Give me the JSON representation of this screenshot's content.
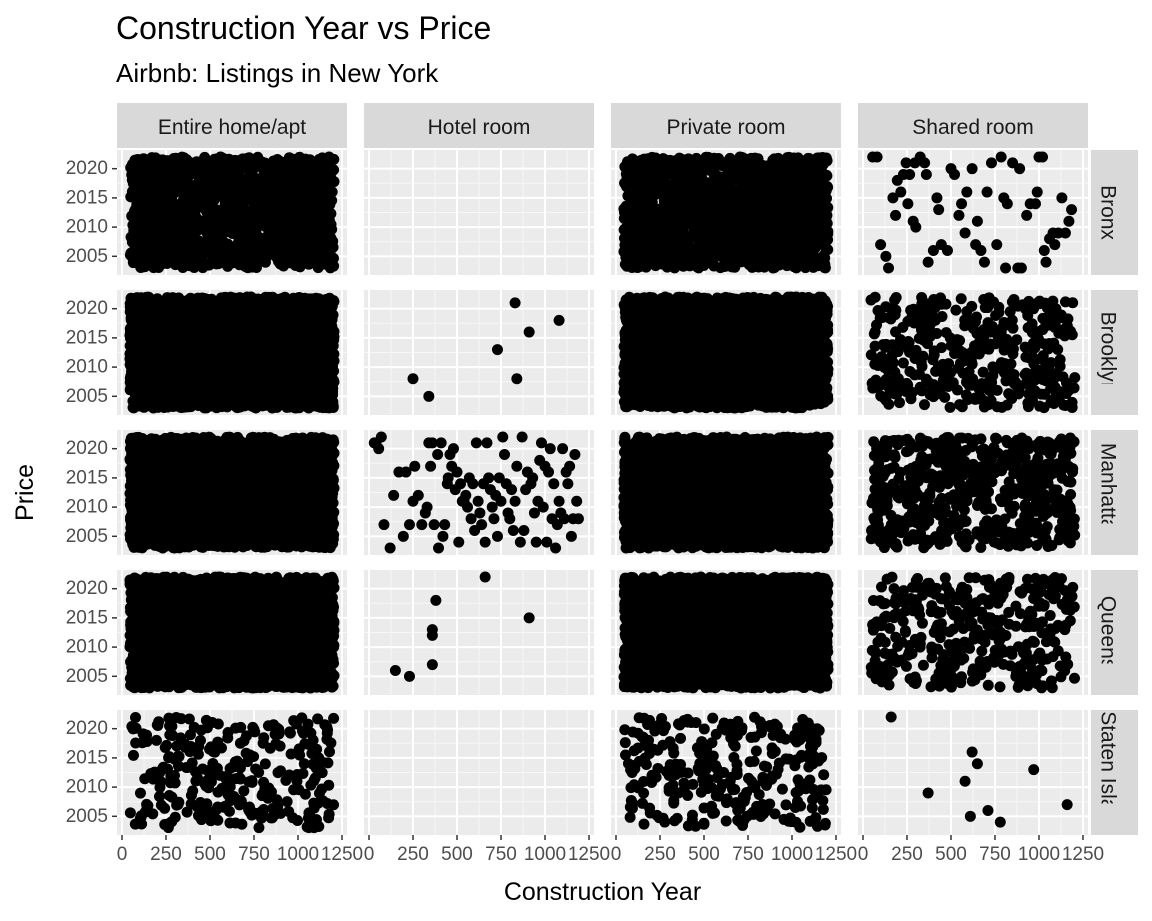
{
  "chart_data": {
    "type": "scatter",
    "title": "Construction Year vs Price",
    "subtitle": "Airbnb: Listings in New York",
    "xlabel": "Construction Year",
    "ylabel": "Price",
    "xlim": [
      0,
      1250
    ],
    "ylim": [
      2003,
      2022
    ],
    "x_ticks": [
      0,
      250,
      500,
      750,
      1000,
      1250
    ],
    "y_ticks": [
      2005,
      2010,
      2015,
      2020
    ],
    "grid": true,
    "legend": "none",
    "point_color": "#000000",
    "panel_background": "#EBEBEB",
    "strip_background": "#D9D9D9",
    "facet_columns": [
      "Entire home/apt",
      "Hotel room",
      "Private room",
      "Shared room"
    ],
    "facet_rows": [
      "Bronx",
      "Brooklyn",
      "Manhattan",
      "Queens",
      "Staten Island"
    ],
    "panels": [
      {
        "row": "Bronx",
        "col": "Entire home/apt",
        "density": "dense",
        "n_points": 1500
      },
      {
        "row": "Bronx",
        "col": "Hotel room",
        "density": "empty",
        "points": []
      },
      {
        "row": "Bronx",
        "col": "Private room",
        "density": "dense",
        "n_points": 1500
      },
      {
        "row": "Bronx",
        "col": "Shared room",
        "density": "sparse",
        "points": [
          [
            55,
            2022
          ],
          [
            80,
            2022
          ],
          [
            100,
            2007
          ],
          [
            130,
            2005
          ],
          [
            145,
            2003
          ],
          [
            170,
            2015
          ],
          [
            185,
            2012
          ],
          [
            195,
            2018
          ],
          [
            215,
            2016
          ],
          [
            230,
            2019
          ],
          [
            245,
            2021
          ],
          [
            255,
            2014
          ],
          [
            265,
            2019
          ],
          [
            285,
            2011
          ],
          [
            295,
            2021
          ],
          [
            300,
            2010
          ],
          [
            325,
            2022
          ],
          [
            350,
            2021
          ],
          [
            360,
            2019
          ],
          [
            370,
            2004
          ],
          [
            400,
            2006
          ],
          [
            420,
            2015
          ],
          [
            430,
            2013
          ],
          [
            445,
            2007
          ],
          [
            480,
            2006
          ],
          [
            500,
            2020
          ],
          [
            520,
            2019
          ],
          [
            545,
            2012
          ],
          [
            560,
            2014
          ],
          [
            580,
            2009
          ],
          [
            590,
            2016
          ],
          [
            620,
            2020
          ],
          [
            640,
            2007
          ],
          [
            650,
            2011
          ],
          [
            670,
            2006
          ],
          [
            690,
            2004
          ],
          [
            705,
            2016
          ],
          [
            730,
            2021
          ],
          [
            760,
            2007
          ],
          [
            785,
            2022
          ],
          [
            800,
            2015
          ],
          [
            810,
            2003
          ],
          [
            820,
            2014
          ],
          [
            850,
            2021
          ],
          [
            880,
            2003
          ],
          [
            890,
            2020
          ],
          [
            900,
            2003
          ],
          [
            930,
            2012
          ],
          [
            950,
            2014
          ],
          [
            980,
            2014
          ],
          [
            990,
            2016
          ],
          [
            1000,
            2022
          ],
          [
            1020,
            2022
          ],
          [
            1030,
            2006
          ],
          [
            1040,
            2004
          ],
          [
            1060,
            2008
          ],
          [
            1080,
            2009
          ],
          [
            1090,
            2007
          ],
          [
            1110,
            2009
          ],
          [
            1130,
            2015
          ],
          [
            1150,
            2009
          ],
          [
            1170,
            2011
          ],
          [
            1185,
            2013
          ]
        ]
      },
      {
        "row": "Brooklyn",
        "col": "Entire home/apt",
        "density": "dense",
        "n_points": 3000
      },
      {
        "row": "Brooklyn",
        "col": "Hotel room",
        "density": "sparse",
        "points": [
          [
            250,
            2008
          ],
          [
            340,
            2005
          ],
          [
            730,
            2013
          ],
          [
            830,
            2021
          ],
          [
            840,
            2008
          ],
          [
            910,
            2016
          ],
          [
            1080,
            2018
          ]
        ]
      },
      {
        "row": "Brooklyn",
        "col": "Private room",
        "density": "dense",
        "n_points": 3000
      },
      {
        "row": "Brooklyn",
        "col": "Shared room",
        "density": "medium",
        "n_points": 420
      },
      {
        "row": "Manhattan",
        "col": "Entire home/apt",
        "density": "dense",
        "n_points": 3000
      },
      {
        "row": "Manhattan",
        "col": "Hotel room",
        "density": "sparse",
        "points": [
          [
            30,
            2021
          ],
          [
            40,
            2021
          ],
          [
            55,
            2020
          ],
          [
            70,
            2022
          ],
          [
            85,
            2007
          ],
          [
            120,
            2003
          ],
          [
            140,
            2012
          ],
          [
            170,
            2016
          ],
          [
            195,
            2005
          ],
          [
            210,
            2016
          ],
          [
            230,
            2007
          ],
          [
            250,
            2011
          ],
          [
            260,
            2017
          ],
          [
            280,
            2012
          ],
          [
            300,
            2007
          ],
          [
            320,
            2009
          ],
          [
            330,
            2010
          ],
          [
            340,
            2021
          ],
          [
            350,
            2017
          ],
          [
            360,
            2021
          ],
          [
            370,
            2007
          ],
          [
            390,
            2019
          ],
          [
            395,
            2003
          ],
          [
            410,
            2021
          ],
          [
            420,
            2005
          ],
          [
            430,
            2007
          ],
          [
            445,
            2014
          ],
          [
            450,
            2015
          ],
          [
            460,
            2019
          ],
          [
            470,
            2017
          ],
          [
            480,
            2020
          ],
          [
            490,
            2013
          ],
          [
            500,
            2016
          ],
          [
            510,
            2004
          ],
          [
            520,
            2014
          ],
          [
            530,
            2011
          ],
          [
            540,
            2011
          ],
          [
            550,
            2012
          ],
          [
            560,
            2010
          ],
          [
            570,
            2015
          ],
          [
            580,
            2008
          ],
          [
            590,
            2014
          ],
          [
            600,
            2006
          ],
          [
            610,
            2021
          ],
          [
            620,
            2011
          ],
          [
            630,
            2009
          ],
          [
            640,
            2007
          ],
          [
            650,
            2014
          ],
          [
            660,
            2004
          ],
          [
            670,
            2021
          ],
          [
            680,
            2015
          ],
          [
            690,
            2013
          ],
          [
            700,
            2010
          ],
          [
            710,
            2008
          ],
          [
            720,
            2012
          ],
          [
            730,
            2005
          ],
          [
            740,
            2015
          ],
          [
            750,
            2011
          ],
          [
            760,
            2022
          ],
          [
            770,
            2019
          ],
          [
            780,
            2014
          ],
          [
            790,
            2009
          ],
          [
            800,
            2008
          ],
          [
            810,
            2013
          ],
          [
            820,
            2006
          ],
          [
            830,
            2011
          ],
          [
            840,
            2017
          ],
          [
            860,
            2004
          ],
          [
            870,
            2022
          ],
          [
            880,
            2006
          ],
          [
            890,
            2013
          ],
          [
            900,
            2016
          ],
          [
            920,
            2014
          ],
          [
            930,
            2015
          ],
          [
            940,
            2009
          ],
          [
            950,
            2004
          ],
          [
            960,
            2011
          ],
          [
            970,
            2018
          ],
          [
            980,
            2021
          ],
          [
            990,
            2010
          ],
          [
            1000,
            2017
          ],
          [
            1010,
            2004
          ],
          [
            1020,
            2016
          ],
          [
            1030,
            2020
          ],
          [
            1040,
            2008
          ],
          [
            1050,
            2014
          ],
          [
            1060,
            2003
          ],
          [
            1070,
            2007
          ],
          [
            1080,
            2011
          ],
          [
            1090,
            2009
          ],
          [
            1100,
            2020
          ],
          [
            1110,
            2008
          ],
          [
            1120,
            2016
          ],
          [
            1130,
            2014
          ],
          [
            1140,
            2017
          ],
          [
            1150,
            2005
          ],
          [
            1160,
            2008
          ],
          [
            1170,
            2019
          ],
          [
            1180,
            2011
          ],
          [
            1190,
            2008
          ]
        ]
      },
      {
        "row": "Manhattan",
        "col": "Private room",
        "density": "dense",
        "n_points": 3000
      },
      {
        "row": "Manhattan",
        "col": "Shared room",
        "density": "medium",
        "n_points": 600
      },
      {
        "row": "Queens",
        "col": "Entire home/apt",
        "density": "dense",
        "n_points": 3000
      },
      {
        "row": "Queens",
        "col": "Hotel room",
        "density": "sparse",
        "points": [
          [
            150,
            2006
          ],
          [
            230,
            2005
          ],
          [
            360,
            2007
          ],
          [
            360,
            2012
          ],
          [
            360,
            2013
          ],
          [
            380,
            2018
          ],
          [
            660,
            2022
          ],
          [
            910,
            2015
          ]
        ]
      },
      {
        "row": "Queens",
        "col": "Private room",
        "density": "dense",
        "n_points": 3000
      },
      {
        "row": "Queens",
        "col": "Shared room",
        "density": "medium",
        "n_points": 380
      },
      {
        "row": "Staten Island",
        "col": "Entire home/apt",
        "density": "medium",
        "n_points": 300
      },
      {
        "row": "Staten Island",
        "col": "Hotel room",
        "density": "empty",
        "points": []
      },
      {
        "row": "Staten Island",
        "col": "Private room",
        "density": "medium",
        "n_points": 300
      },
      {
        "row": "Staten Island",
        "col": "Shared room",
        "density": "sparse",
        "points": [
          [
            160,
            2022
          ],
          [
            370,
            2009
          ],
          [
            580,
            2011
          ],
          [
            610,
            2005
          ],
          [
            620,
            2016
          ],
          [
            650,
            2014
          ],
          [
            710,
            2006
          ],
          [
            780,
            2004
          ],
          [
            970,
            2013
          ],
          [
            1160,
            2007
          ]
        ]
      }
    ]
  }
}
